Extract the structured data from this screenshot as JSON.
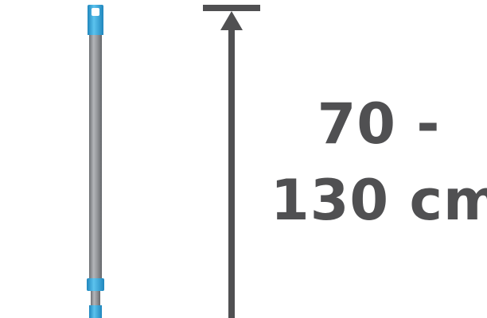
{
  "product": {
    "length_range": {
      "line1": "70 -",
      "line2": "130 cm"
    },
    "icons": {
      "pole": "telescopic-handle-icon",
      "dimension": "height-arrow-icon"
    },
    "colors": {
      "accent": "#3aa6d8",
      "pole_body": "#8d8f93",
      "dimension_line": "#505052",
      "text": "#505052",
      "background": "#ffffff"
    }
  }
}
